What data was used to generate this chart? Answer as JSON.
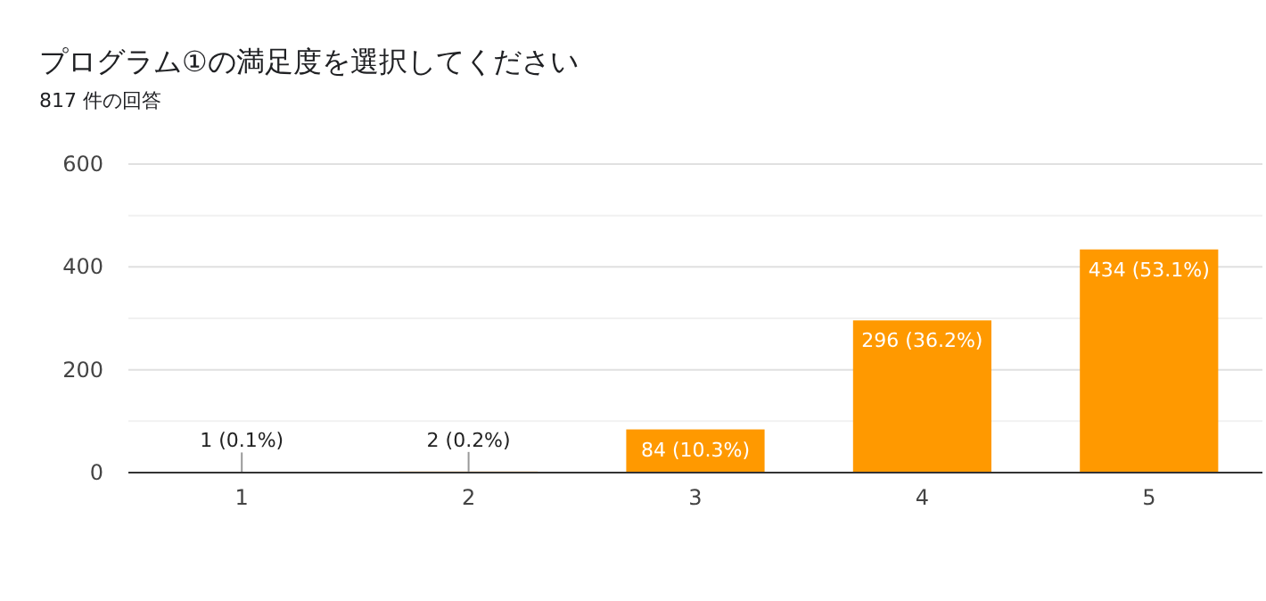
{
  "chart_data": {
    "type": "bar",
    "title": "プログラム①の満足度を選択してください",
    "subtitle": "817 件の回答",
    "categories": [
      "1",
      "2",
      "3",
      "4",
      "5"
    ],
    "values": [
      1,
      2,
      84,
      296,
      434
    ],
    "value_labels": [
      "1 (0.1%)",
      "2 (0.2%)",
      "84 (10.3%)",
      "296 (36.2%)",
      "434 (53.1%)"
    ],
    "color": "#ff9900",
    "ylim": [
      0,
      600
    ],
    "yticks": [
      0,
      {
        "value": 100,
        "label": null
      },
      200,
      {
        "value": 300,
        "label": null
      },
      400,
      {
        "value": 500,
        "label": null
      },
      600
    ],
    "grid": "y"
  }
}
